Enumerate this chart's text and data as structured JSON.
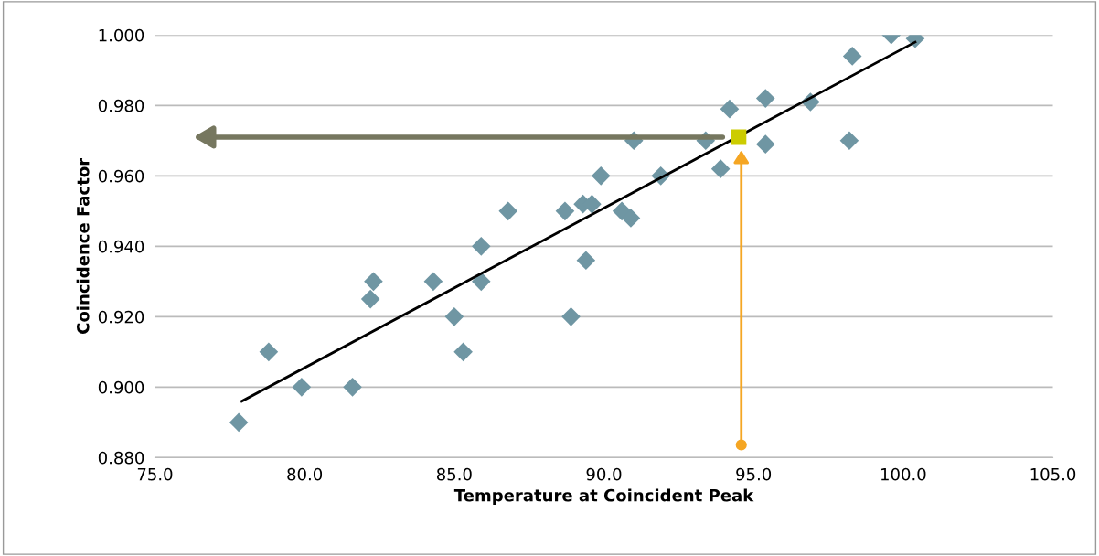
{
  "chart_data": {
    "type": "scatter",
    "xlabel": "Temperature at Coincident Peak",
    "ylabel": "Coincidence Factor",
    "xlim": [
      75,
      105
    ],
    "ylim": [
      0.88,
      1.0
    ],
    "xticks": [
      {
        "value": 75,
        "label": "75.0"
      },
      {
        "value": 80,
        "label": "80.0"
      },
      {
        "value": 85,
        "label": "85.0"
      },
      {
        "value": 90,
        "label": "90.0"
      },
      {
        "value": 95,
        "label": "95.0"
      },
      {
        "value": 100,
        "label": "100.0"
      },
      {
        "value": 105,
        "label": "105.0"
      }
    ],
    "yticks": [
      {
        "value": 0.88,
        "label": "0.880"
      },
      {
        "value": 0.9,
        "label": "0.900"
      },
      {
        "value": 0.92,
        "label": "0.920"
      },
      {
        "value": 0.94,
        "label": "0.940"
      },
      {
        "value": 0.96,
        "label": "0.960"
      },
      {
        "value": 0.98,
        "label": "0.980"
      },
      {
        "value": 1.0,
        "label": "1.000"
      }
    ],
    "grid": "y",
    "marker": "diamond",
    "series": [
      {
        "color": "#6f96a3",
        "x": [
          77.8,
          78.8,
          79.9,
          81.6,
          82.2,
          82.3,
          84.3,
          85.0,
          85.3,
          85.9,
          85.9,
          86.8,
          88.7,
          88.9,
          89.3,
          89.4,
          89.6,
          89.9,
          90.6,
          90.9,
          91.0,
          91.9,
          93.4,
          93.9,
          94.2,
          95.4,
          95.4,
          96.9,
          98.2,
          98.3,
          99.6,
          100.4
        ],
        "values": [
          0.89,
          0.91,
          0.9,
          0.9,
          0.925,
          0.93,
          0.93,
          0.92,
          0.91,
          0.94,
          0.93,
          0.95,
          0.95,
          0.92,
          0.952,
          0.936,
          0.952,
          0.96,
          0.95,
          0.948,
          0.97,
          0.96,
          0.97,
          0.962,
          0.979,
          0.982,
          0.969,
          0.981,
          0.97,
          0.994,
          1.0,
          0.999
        ]
      },
      {
        "type": "line",
        "color": "#000000",
        "marker": "none",
        "x": [
          77.9,
          100.4
        ],
        "values": [
          0.896,
          0.998
        ]
      },
      {
        "type": "scatter",
        "color": "#cccc00",
        "marker": "square",
        "x": [
          94.5
        ],
        "values": [
          0.971
        ]
      }
    ]
  }
}
